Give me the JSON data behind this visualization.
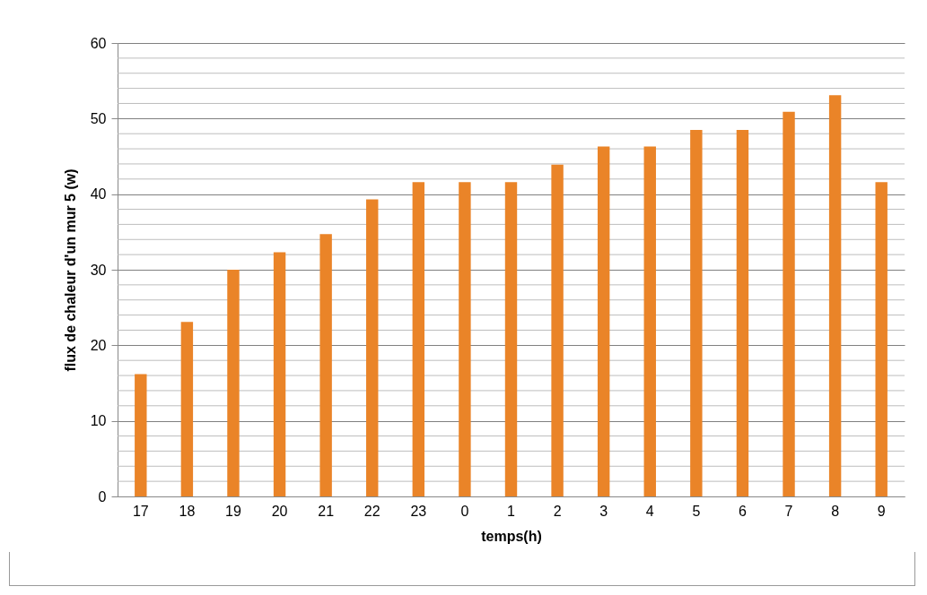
{
  "chart_data": {
    "type": "bar",
    "xlabel": "temps(h)",
    "ylabel": "flux de chaleur d'un mur 5 (w)",
    "categories": [
      "17",
      "18",
      "19",
      "20",
      "21",
      "22",
      "23",
      "0",
      "1",
      "2",
      "3",
      "4",
      "5",
      "6",
      "7",
      "8",
      "9"
    ],
    "values": [
      16.2,
      23.1,
      30.0,
      32.3,
      34.7,
      39.3,
      41.6,
      41.6,
      41.6,
      43.9,
      46.3,
      46.3,
      48.5,
      48.5,
      50.9,
      53.1,
      41.6
    ],
    "color": "#ea8428",
    "ylim": [
      0,
      60
    ],
    "yticks": [
      0,
      {
        "value": 2,
        "label": null
      },
      {
        "value": 4,
        "label": null
      },
      {
        "value": 6,
        "label": null
      },
      {
        "value": 8,
        "label": null
      },
      10,
      {
        "value": 12,
        "label": null
      },
      {
        "value": 14,
        "label": null
      },
      {
        "value": 16,
        "label": null
      },
      {
        "value": 18,
        "label": null
      },
      20,
      {
        "value": 22,
        "label": null
      },
      {
        "value": 24,
        "label": null
      },
      {
        "value": 26,
        "label": null
      },
      {
        "value": 28,
        "label": null
      },
      30,
      {
        "value": 32,
        "label": null
      },
      {
        "value": 34,
        "label": null
      },
      {
        "value": 36,
        "label": null
      },
      {
        "value": 38,
        "label": null
      },
      40,
      {
        "value": 42,
        "label": null
      },
      {
        "value": 44,
        "label": null
      },
      {
        "value": 46,
        "label": null
      },
      {
        "value": 48,
        "label": null
      },
      50,
      {
        "value": 52,
        "label": null
      },
      {
        "value": 54,
        "label": null
      },
      {
        "value": 56,
        "label": null
      },
      {
        "value": 58,
        "label": null
      },
      60
    ],
    "grid": "y"
  }
}
